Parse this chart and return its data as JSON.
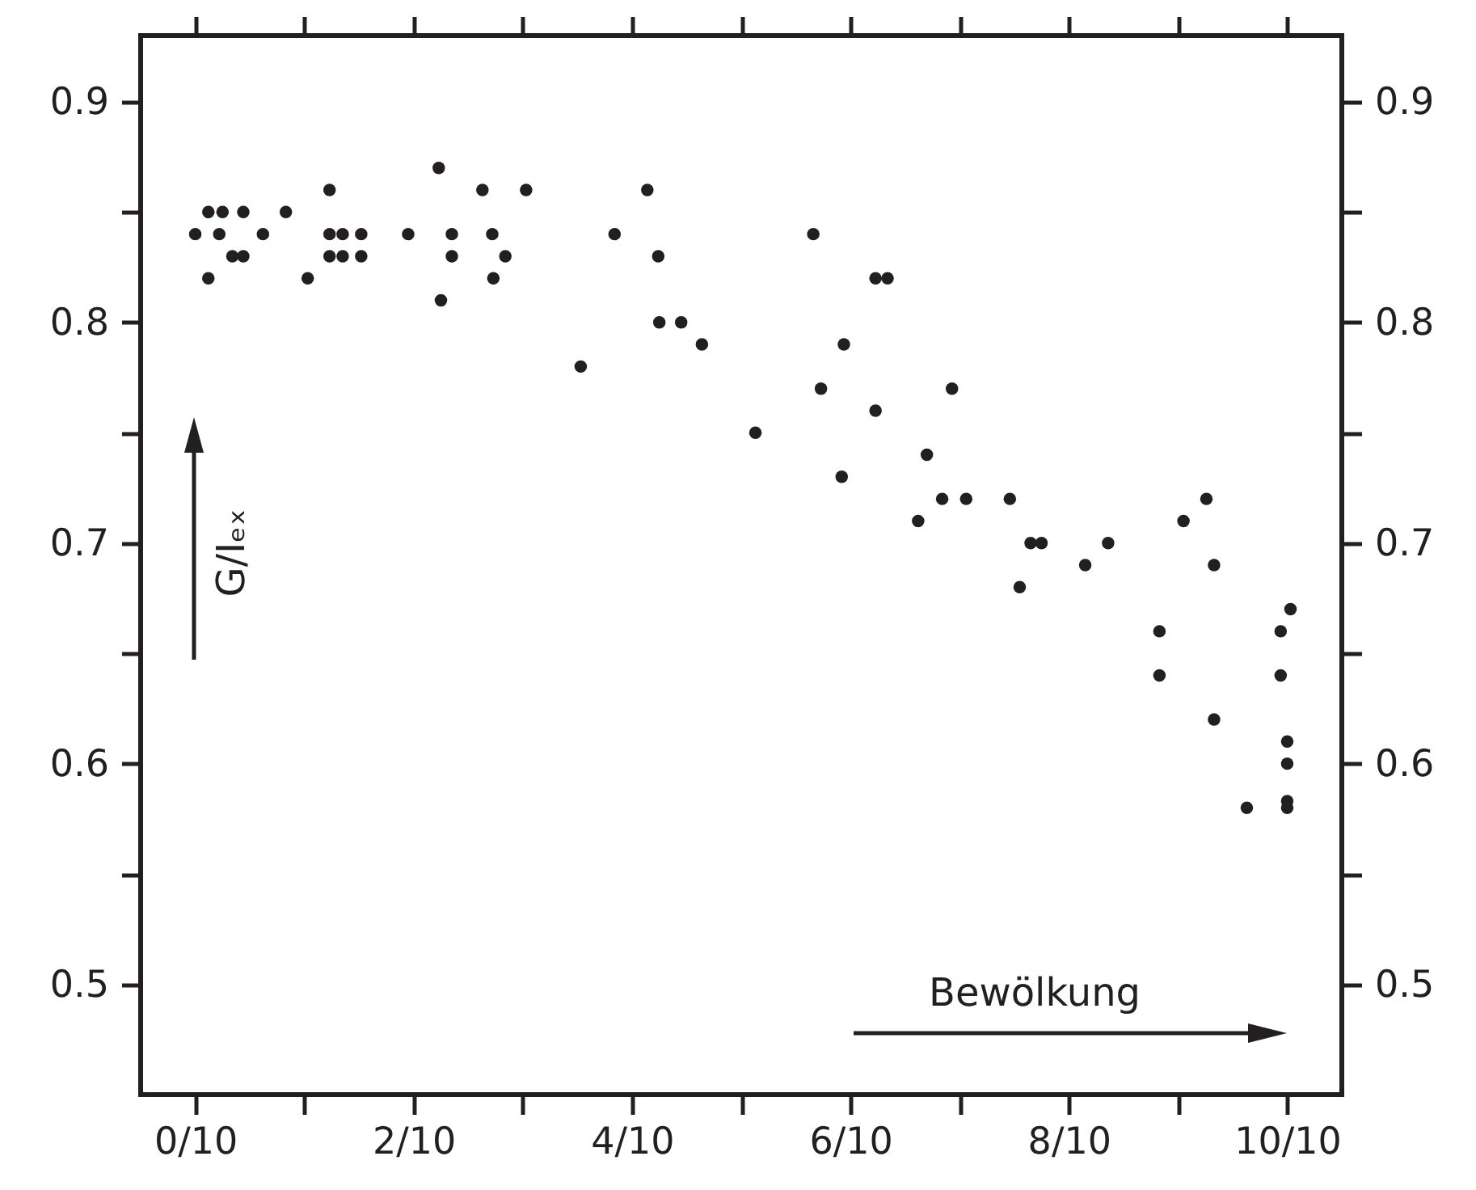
{
  "chart_data": {
    "type": "scatter",
    "xlabel": "Bewölkung",
    "ylabel": "G/Iₑₓ",
    "x": [
      0,
      0.012,
      0.012,
      0.025,
      0.022,
      0.034,
      0.044,
      0.044,
      0.062,
      0.083,
      0.103,
      0.123,
      0.123,
      0.123,
      0.135,
      0.135,
      0.152,
      0.152,
      0.195,
      0.223,
      0.225,
      0.235,
      0.235,
      0.263,
      0.272,
      0.273,
      0.284,
      0.303,
      0.353,
      0.384,
      0.414,
      0.424,
      0.425,
      0.445,
      0.464,
      0.513,
      0.566,
      0.573,
      0.594,
      0.592,
      0.623,
      0.623,
      0.634,
      0.662,
      0.67,
      0.684,
      0.693,
      0.706,
      0.746,
      0.755,
      0.765,
      0.775,
      0.815,
      0.836,
      0.883,
      0.883,
      0.905,
      0.926,
      0.933,
      0.933,
      0.963,
      0.994,
      0.994,
      1.003,
      1,
      1,
      1,
      1
    ],
    "series": [
      {
        "color": "#231f20",
        "values": [
          0.84,
          0.85,
          0.82,
          0.85,
          0.84,
          0.83,
          0.85,
          0.83,
          0.84,
          0.85,
          0.82,
          0.86,
          0.84,
          0.83,
          0.84,
          0.83,
          0.84,
          0.83,
          0.84,
          0.87,
          0.81,
          0.84,
          0.83,
          0.86,
          0.84,
          0.82,
          0.83,
          0.86,
          0.78,
          0.84,
          0.86,
          0.83,
          0.8,
          0.8,
          0.79,
          0.75,
          0.84,
          0.77,
          0.79,
          0.73,
          0.76,
          0.82,
          0.82,
          0.71,
          0.74,
          0.72,
          0.77,
          0.72,
          0.72,
          0.68,
          0.7,
          0.7,
          0.69,
          0.7,
          0.66,
          0.64,
          0.71,
          0.72,
          0.69,
          0.62,
          0.58,
          0.66,
          0.64,
          0.67,
          0.61,
          0.6,
          0.583,
          0.58
        ]
      }
    ],
    "xlim": [
      -0.05,
      1.05
    ],
    "xticks": [
      {
        "value": 0,
        "label": "0/10"
      },
      {
        "value": 0.1,
        "label": null
      },
      {
        "value": 0.2,
        "label": "2/10"
      },
      {
        "value": 0.3,
        "label": null
      },
      {
        "value": 0.4,
        "label": "4/10"
      },
      {
        "value": 0.5,
        "label": null
      },
      {
        "value": 0.6,
        "label": "6/10"
      },
      {
        "value": 0.7,
        "label": null
      },
      {
        "value": 0.8,
        "label": "8/10"
      },
      {
        "value": 0.9,
        "label": null
      },
      {
        "value": 1,
        "label": "10/10"
      }
    ],
    "ylim": [
      0.45,
      0.93
    ],
    "yticks": [
      0.5,
      {
        "value": 0.55,
        "label": null
      },
      0.6,
      {
        "value": 0.65,
        "label": null
      },
      0.7,
      {
        "value": 0.75,
        "label": null
      },
      0.8,
      {
        "value": 0.85,
        "label": null
      },
      0.9
    ],
    "y2lim": [
      0.45,
      0.93
    ],
    "y2ticks": [
      0.5,
      {
        "value": 0.55,
        "label": null
      },
      0.6,
      {
        "value": 0.65,
        "label": null
      },
      0.7,
      {
        "value": 0.75,
        "label": null
      },
      0.8,
      {
        "value": 0.85,
        "label": null
      },
      0.9
    ],
    "marker": "circle",
    "grid": false
  }
}
